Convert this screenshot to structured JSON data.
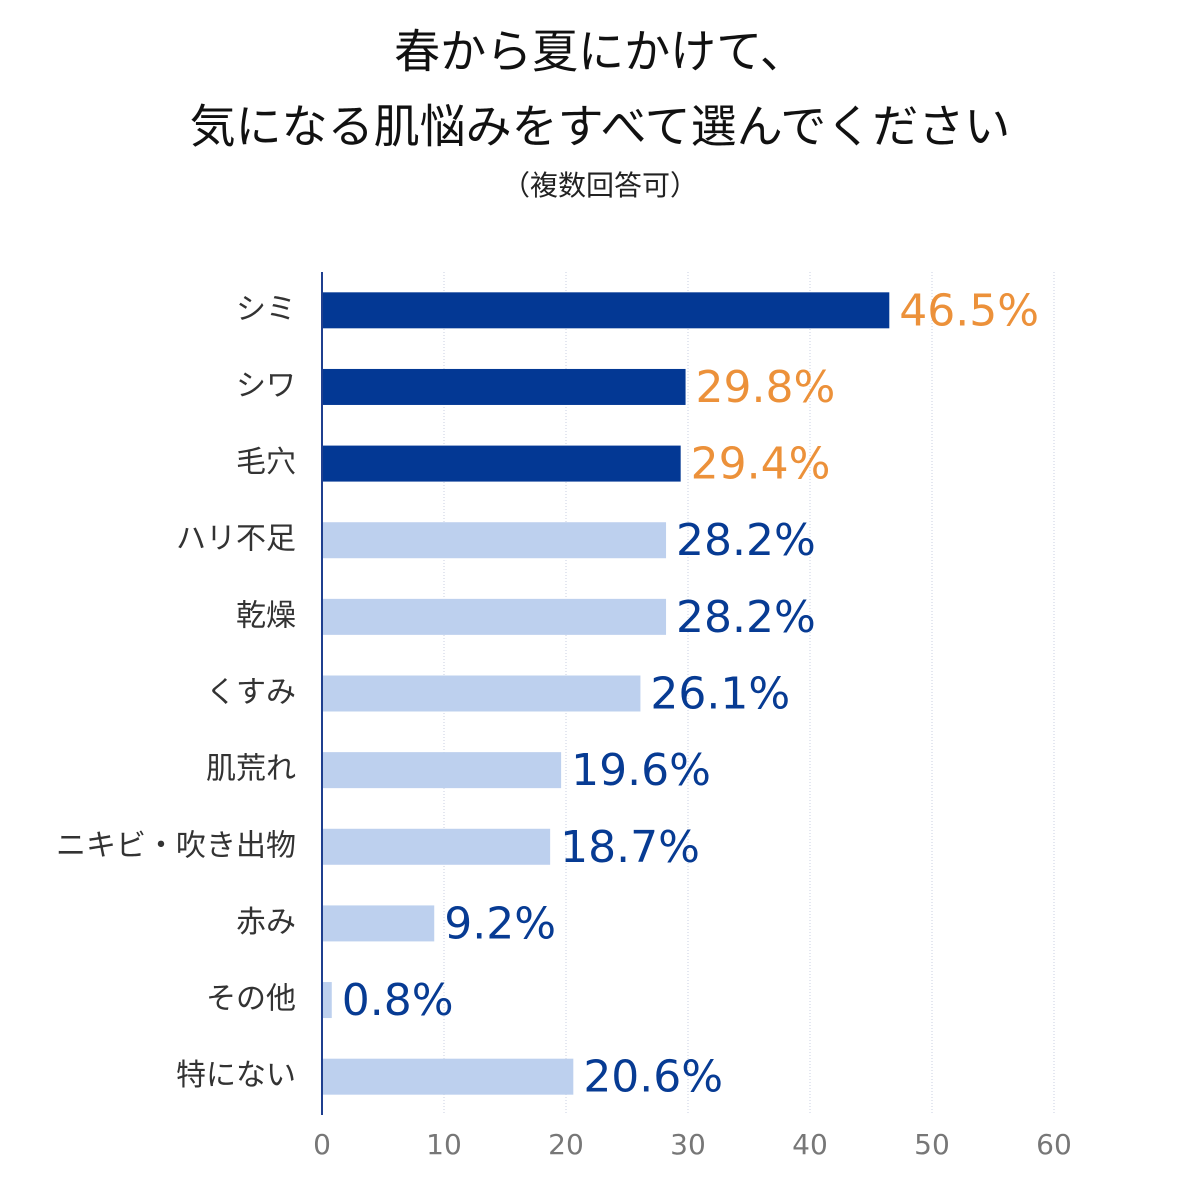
{
  "chart_data": {
    "type": "bar",
    "orientation": "horizontal",
    "title": [
      "春から夏にかけて、",
      "気になる肌悩みをすべて選んでください"
    ],
    "subtitle": "（複数回答可）",
    "categories": [
      "シミ",
      "シワ",
      "毛穴",
      "ハリ不足",
      "乾燥",
      "くすみ",
      "肌荒れ",
      "ニキビ・吹き出物",
      "赤み",
      "その他",
      "特にない"
    ],
    "values": [
      46.5,
      29.8,
      29.4,
      28.2,
      28.2,
      26.1,
      19.6,
      18.7,
      9.2,
      0.8,
      20.6
    ],
    "value_labels": [
      "46.5%",
      "29.8%",
      "29.4%",
      "28.2%",
      "28.2%",
      "26.1%",
      "19.6%",
      "18.7%",
      "9.2%",
      "0.8%",
      "20.6%"
    ],
    "colors": [
      "#033894",
      "#033894",
      "#033894",
      "#bdd0ee",
      "#bdd0ee",
      "#bdd0ee",
      "#bdd0ee",
      "#bdd0ee",
      "#bdd0ee",
      "#bdd0ee",
      "#bdd0ee"
    ],
    "label_colors": [
      "#ec913a",
      "#ec913a",
      "#ec913a",
      "#073b93",
      "#073b93",
      "#073b93",
      "#073b93",
      "#073b93",
      "#073b93",
      "#073b93",
      "#073b93"
    ],
    "xlim": [
      0,
      60
    ],
    "xticks": [
      0,
      10,
      20,
      30,
      40,
      50,
      60
    ],
    "grid": true
  }
}
